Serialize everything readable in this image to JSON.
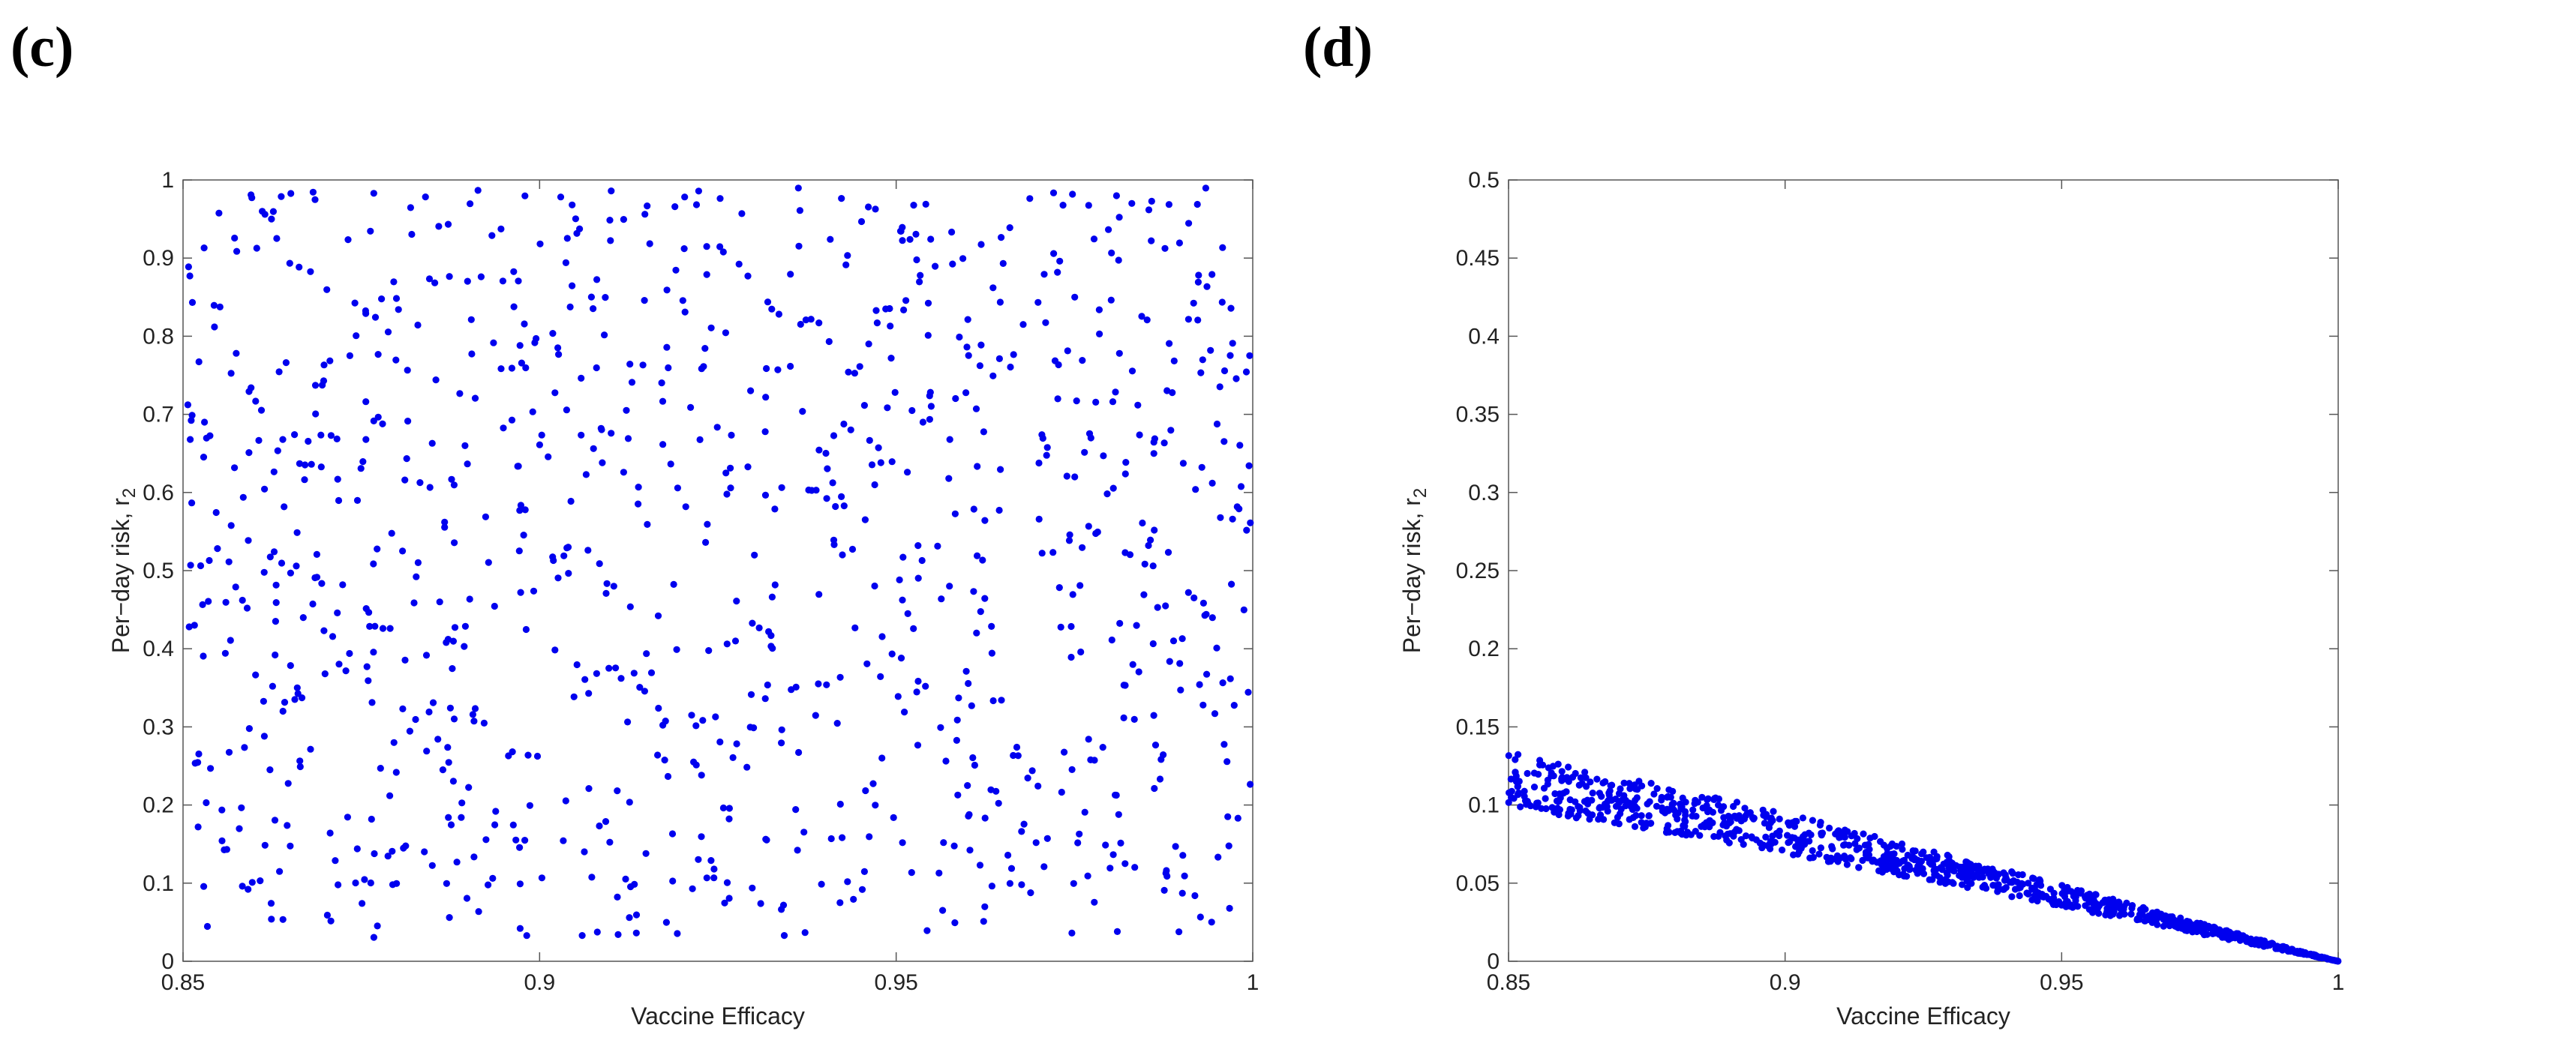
{
  "chart_data": [
    {
      "panel_label": "(c)",
      "type": "scatter",
      "xlabel": "Vaccine Efficacy",
      "ylabel": "Per−day risk, r",
      "ylabel_subscript": "2",
      "xlim": [
        0.85,
        1.0
      ],
      "ylim": [
        0,
        1.0
      ],
      "xticks": [
        "0.85",
        "0.9",
        "0.95",
        "1"
      ],
      "yticks": [
        "0",
        "0.1",
        "0.2",
        "0.3",
        "0.4",
        "0.5",
        "0.6",
        "0.7",
        "0.8",
        "0.9",
        "1"
      ],
      "marker_color": "#0000ee",
      "distribution": "uniform",
      "n_points": 1000,
      "x_range": [
        0.85,
        1.0
      ],
      "y_range": [
        0.03,
        0.99
      ]
    },
    {
      "panel_label": "(d)",
      "type": "scatter",
      "xlabel": "Vaccine Efficacy",
      "ylabel": "Per−day risk, r",
      "ylabel_subscript": "2",
      "xlim": [
        0.85,
        1.0
      ],
      "ylim": [
        0,
        0.5
      ],
      "xticks": [
        "0.85",
        "0.9",
        "0.95",
        "1"
      ],
      "yticks": [
        "0",
        "0.05",
        "0.1",
        "0.15",
        "0.2",
        "0.25",
        "0.3",
        "0.35",
        "0.4",
        "0.45",
        "0.5"
      ],
      "marker_color": "#0000ee",
      "distribution": "linear band",
      "n_points": 1000,
      "band_center": [
        [
          0.85,
          0.117
        ],
        [
          0.9,
          0.082
        ],
        [
          0.95,
          0.042
        ],
        [
          1.0,
          0.0
        ]
      ],
      "band_halfwidth": [
        [
          0.85,
          0.018
        ],
        [
          0.9,
          0.013
        ],
        [
          0.95,
          0.007
        ],
        [
          1.0,
          0.0
        ]
      ]
    }
  ]
}
